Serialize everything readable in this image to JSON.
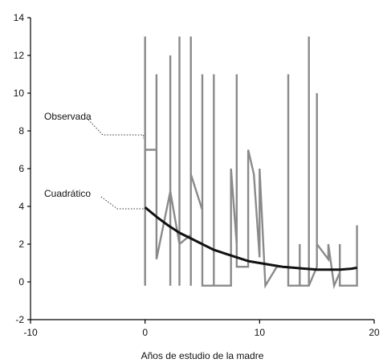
{
  "chart_data": {
    "type": "line",
    "xlabel": "Años de estudio de la madre",
    "ylabel": "",
    "xlim": [
      -10,
      20
    ],
    "ylim": [
      -2,
      14
    ],
    "x_ticks": [
      -10,
      0,
      10,
      20
    ],
    "y_ticks": [
      -2,
      0,
      2,
      4,
      6,
      8,
      10,
      12,
      14
    ],
    "grid": false,
    "series": [
      {
        "name": "Observada",
        "color": "#8a8a8a",
        "points": [
          [
            0,
            -0.2
          ],
          [
            0,
            13
          ],
          [
            0,
            7
          ],
          [
            1,
            7
          ],
          [
            1,
            11
          ],
          [
            1,
            1.2
          ],
          [
            2.2,
            4.8
          ],
          [
            2.2,
            12
          ],
          [
            2.2,
            -0.2
          ],
          [
            2.2,
            4.8
          ],
          [
            3,
            2
          ],
          [
            3,
            13
          ],
          [
            3,
            -0.2
          ],
          [
            3,
            2
          ],
          [
            4,
            2.5
          ],
          [
            4,
            13
          ],
          [
            4,
            -0.2
          ],
          [
            4,
            5.7
          ],
          [
            5,
            3.8
          ],
          [
            5,
            11
          ],
          [
            5,
            -0.2
          ],
          [
            6,
            -0.2
          ],
          [
            6,
            11
          ],
          [
            6,
            -0.2
          ],
          [
            7.5,
            -0.2
          ],
          [
            7.5,
            6
          ],
          [
            8,
            2
          ],
          [
            8,
            11
          ],
          [
            8,
            0.8
          ],
          [
            9,
            0.8
          ],
          [
            9,
            7
          ],
          [
            9.5,
            5.7
          ],
          [
            10,
            1.3
          ],
          [
            10,
            6
          ],
          [
            10.5,
            -0.2
          ],
          [
            11.5,
            0.8
          ],
          [
            12.5,
            0.8
          ],
          [
            12.5,
            11
          ],
          [
            12.5,
            -0.2
          ],
          [
            13.5,
            -0.2
          ],
          [
            13.5,
            2
          ],
          [
            13.5,
            -0.2
          ],
          [
            14.3,
            -0.2
          ],
          [
            14.3,
            13
          ],
          [
            14.3,
            -0.2
          ],
          [
            15,
            0.8
          ],
          [
            15,
            10
          ],
          [
            15,
            2
          ],
          [
            16,
            1.2
          ],
          [
            16,
            2
          ],
          [
            16.5,
            -0.2
          ],
          [
            17,
            0.5
          ],
          [
            17,
            2
          ],
          [
            17,
            -0.2
          ],
          [
            18.5,
            -0.2
          ],
          [
            18.5,
            3
          ]
        ]
      },
      {
        "name": "Cuadrático",
        "color": "#111111",
        "points": [
          [
            0,
            3.95
          ],
          [
            1,
            3.45
          ],
          [
            2,
            3.0
          ],
          [
            3,
            2.6
          ],
          [
            4,
            2.3
          ],
          [
            5,
            2.0
          ],
          [
            6,
            1.7
          ],
          [
            7,
            1.5
          ],
          [
            8,
            1.3
          ],
          [
            9,
            1.1
          ],
          [
            10,
            1.0
          ],
          [
            11,
            0.9
          ],
          [
            12,
            0.8
          ],
          [
            13,
            0.75
          ],
          [
            14,
            0.7
          ],
          [
            15,
            0.65
          ],
          [
            16,
            0.65
          ],
          [
            17,
            0.65
          ],
          [
            18,
            0.7
          ],
          [
            18.5,
            0.75
          ]
        ]
      }
    ],
    "annotations": [
      {
        "text": "Observada",
        "series": 0,
        "target": [
          0,
          7.6
        ]
      },
      {
        "text": "Cuadrático",
        "series": 1,
        "target": [
          0,
          3.95
        ]
      }
    ]
  }
}
